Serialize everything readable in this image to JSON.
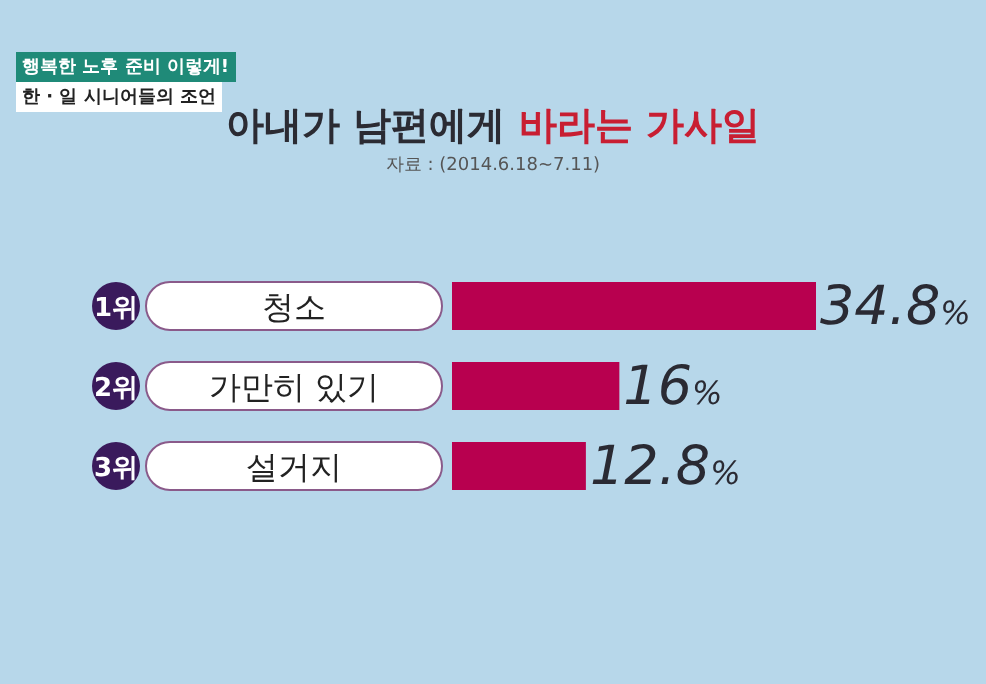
{
  "chart_data": {
    "type": "bar",
    "orientation": "horizontal",
    "title": "아내가 남편에게 바라는 가사일",
    "categories": [
      "청소",
      "가만히 있기",
      "설거지"
    ],
    "values": [
      34.8,
      16,
      12.8
    ],
    "value_labels": [
      "34.8%",
      "16%",
      "12.8%"
    ],
    "color": "#b8004f",
    "annotations": [
      "행복한 노후 준비 이렇게!",
      "한 · 일 시니어들의 조언",
      "자료 : (2014.6.18~7.11)",
      "1위",
      "2위",
      "3위"
    ],
    "legend": false,
    "grid": false
  }
}
